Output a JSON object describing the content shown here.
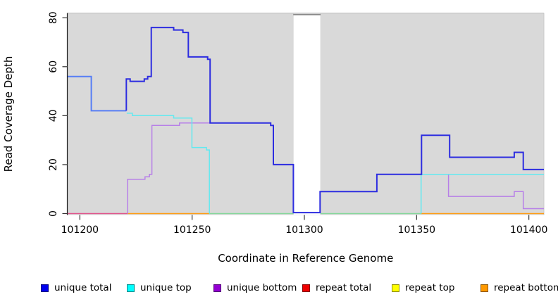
{
  "chart_data": {
    "type": "line",
    "subtype": "step-coverage",
    "title": "",
    "xlabel": "Coordinate in Reference Genome",
    "ylabel": "Read Coverage Depth",
    "xlim": [
      101194.4,
      101406.7
    ],
    "ylim": [
      0,
      80
    ],
    "x_ticks": [
      101200,
      101250,
      101300,
      101350,
      101400
    ],
    "y_ticks": [
      0,
      20,
      40,
      60,
      80
    ],
    "grid": false,
    "plot_background": "#d9d9d9",
    "masked_region": {
      "x0": 101295.2,
      "x1": 101307.1,
      "fill": "#ffffff",
      "top_bar_color": "#8a8a8a"
    },
    "zero_level_segments": [
      {
        "name": "zero-unique-bottom-overlap",
        "x0": 101194.4,
        "x1": 101221.3,
        "color": "#e0558c"
      },
      {
        "name": "zero-repeat-bottom-1",
        "x0": 101221.3,
        "x1": 101257.7,
        "color": "#ff9d14"
      },
      {
        "name": "zero-unique-top-overlap",
        "x0": 101257.7,
        "x1": 101352.0,
        "color": "#85d79b"
      },
      {
        "name": "zero-repeat-bottom-2",
        "x0": 101352.0,
        "x1": 101406.7,
        "color": "#ff9d14"
      }
    ],
    "series": [
      {
        "name": "unique bottom",
        "color": "#b77fe8",
        "width": 1.5,
        "end": 101406.7,
        "points": [
          [
            101221.3,
            0
          ],
          [
            101221.3,
            14
          ],
          [
            101229.0,
            15
          ],
          [
            101231.0,
            16
          ],
          [
            101232.1,
            36
          ],
          [
            101244.4,
            37
          ],
          [
            101285.0,
            36
          ],
          [
            101286.2,
            20
          ],
          [
            101295.1,
            0.4
          ],
          [
            101307.0,
            9
          ],
          [
            101332.3,
            16
          ],
          [
            101364.2,
            7
          ],
          [
            101393.5,
            9
          ],
          [
            101397.5,
            2
          ]
        ]
      },
      {
        "name": "unique top (left)",
        "color": "#62e9f0",
        "width": 1.5,
        "end": 101257.7,
        "points": [
          [
            101220.9,
            41
          ],
          [
            101223.4,
            40
          ],
          [
            101241.8,
            39
          ],
          [
            101249.9,
            27
          ],
          [
            101256.4,
            26
          ],
          [
            101257.7,
            0
          ]
        ]
      },
      {
        "name": "unique top (right)",
        "color": "#62e9f0",
        "width": 1.5,
        "end": 101406.7,
        "points": [
          [
            101352.0,
            0
          ],
          [
            101352.0,
            16
          ]
        ]
      },
      {
        "name": "unique total (left, overlaps unique top)",
        "color": "#577ef5",
        "width": 2,
        "end": 101220.7,
        "points": [
          [
            101194.4,
            56
          ],
          [
            101205.1,
            42
          ]
        ]
      },
      {
        "name": "unique total",
        "color": "#2d2de0",
        "width": 2,
        "end": 101406.7,
        "points": [
          [
            101220.7,
            42
          ],
          [
            101220.7,
            55
          ],
          [
            101222.4,
            54
          ],
          [
            101228.7,
            55
          ],
          [
            101230.2,
            56
          ],
          [
            101231.8,
            76
          ],
          [
            101241.8,
            75
          ],
          [
            101245.9,
            74
          ],
          [
            101248.3,
            64
          ],
          [
            101256.9,
            63
          ],
          [
            101258.0,
            37
          ],
          [
            101285.0,
            36
          ],
          [
            101286.2,
            20
          ],
          [
            101295.1,
            0.4
          ],
          [
            101307.0,
            9
          ],
          [
            101332.3,
            16
          ],
          [
            101352.2,
            32
          ],
          [
            101364.7,
            23
          ],
          [
            101393.5,
            25
          ],
          [
            101397.5,
            18
          ]
        ]
      }
    ],
    "legend": [
      {
        "label": "unique total",
        "color": "#0000ee"
      },
      {
        "label": "unique top",
        "color": "#00ffff"
      },
      {
        "label": "unique bottom",
        "color": "#9400d3"
      },
      {
        "label": "repeat total",
        "color": "#ee0000"
      },
      {
        "label": "repeat top",
        "color": "#ffff00"
      },
      {
        "label": "repeat bottom",
        "color": "#ff9900"
      }
    ],
    "legend_position": "bottom"
  }
}
